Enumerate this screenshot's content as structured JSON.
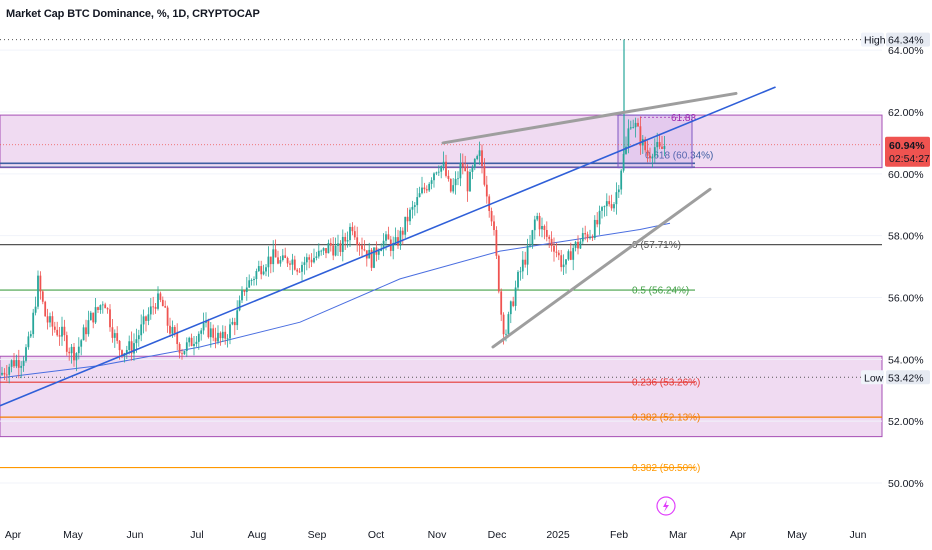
{
  "title": "Market Cap BTC Dominance, %, 1D, CRYPTOCAP",
  "chart_data": {
    "type": "candlestick",
    "y_axis": {
      "ticks": [
        "50.00%",
        "52.00%",
        "54.00%",
        "56.00%",
        "58.00%",
        "60.00%",
        "62.00%",
        "64.00%"
      ],
      "ylim": [
        49.0,
        65.0
      ],
      "side": "right"
    },
    "x_axis": {
      "ticks": [
        "Apr",
        "May",
        "Jun",
        "Jul",
        "Aug",
        "Sep",
        "Oct",
        "Nov",
        "Dec",
        "2025",
        "Feb",
        "Mar",
        "Apr",
        "May",
        "Jun"
      ]
    },
    "close_path": [
      [
        0,
        53.5
      ],
      [
        12,
        53.9
      ],
      [
        22,
        54.0
      ],
      [
        30,
        54.6
      ],
      [
        38,
        56.5
      ],
      [
        46,
        55.3
      ],
      [
        54,
        55.0
      ],
      [
        62,
        54.8
      ],
      [
        70,
        54.3
      ],
      [
        76,
        54.2
      ],
      [
        82,
        54.7
      ],
      [
        90,
        55.3
      ],
      [
        98,
        55.6
      ],
      [
        104,
        56.0
      ],
      [
        112,
        55.0
      ],
      [
        118,
        54.4
      ],
      [
        124,
        54.3
      ],
      [
        132,
        54.4
      ],
      [
        140,
        54.9
      ],
      [
        148,
        55.4
      ],
      [
        156,
        55.9
      ],
      [
        162,
        55.8
      ],
      [
        168,
        55.1
      ],
      [
        176,
        54.6
      ],
      [
        182,
        54.3
      ],
      [
        190,
        54.5
      ],
      [
        198,
        54.9
      ],
      [
        206,
        55.0
      ],
      [
        214,
        54.8
      ],
      [
        222,
        54.6
      ],
      [
        230,
        55.0
      ],
      [
        238,
        55.5
      ],
      [
        244,
        56.3
      ],
      [
        252,
        56.6
      ],
      [
        258,
        56.9
      ],
      [
        266,
        57.2
      ],
      [
        274,
        57.3
      ],
      [
        282,
        57.1
      ],
      [
        290,
        57.3
      ],
      [
        298,
        57.0
      ],
      [
        306,
        57.2
      ],
      [
        314,
        57.3
      ],
      [
        322,
        57.4
      ],
      [
        330,
        57.7
      ],
      [
        338,
        57.5
      ],
      [
        346,
        57.9
      ],
      [
        352,
        58.4
      ],
      [
        358,
        57.9
      ],
      [
        364,
        57.6
      ],
      [
        372,
        57.2
      ],
      [
        380,
        57.8
      ],
      [
        388,
        57.8
      ],
      [
        394,
        57.6
      ],
      [
        402,
        58.1
      ],
      [
        408,
        58.6
      ],
      [
        414,
        58.9
      ],
      [
        420,
        59.3
      ],
      [
        426,
        59.6
      ],
      [
        432,
        60.0
      ],
      [
        438,
        60.3
      ],
      [
        444,
        60.2
      ],
      [
        450,
        59.4
      ],
      [
        456,
        59.7
      ],
      [
        462,
        60.4
      ],
      [
        468,
        59.6
      ],
      [
        474,
        60.2
      ],
      [
        480,
        60.6
      ],
      [
        486,
        59.6
      ],
      [
        492,
        58.6
      ],
      [
        498,
        56.7
      ],
      [
        502,
        55.2
      ],
      [
        506,
        54.9
      ],
      [
        512,
        55.8
      ],
      [
        518,
        56.6
      ],
      [
        524,
        57.2
      ],
      [
        530,
        57.6
      ],
      [
        536,
        58.7
      ],
      [
        542,
        58.2
      ],
      [
        548,
        57.9
      ],
      [
        554,
        57.7
      ],
      [
        560,
        57.2
      ],
      [
        566,
        57.0
      ],
      [
        572,
        57.6
      ],
      [
        578,
        57.7
      ],
      [
        584,
        58.0
      ],
      [
        590,
        58.1
      ],
      [
        596,
        58.3
      ],
      [
        602,
        58.7
      ],
      [
        608,
        59.1
      ],
      [
        614,
        59.1
      ],
      [
        618,
        59.6
      ],
      [
        622,
        60.4
      ],
      [
        626,
        60.8
      ],
      [
        630,
        61.8
      ],
      [
        636,
        61.5
      ],
      [
        642,
        61.0
      ],
      [
        648,
        60.6
      ],
      [
        654,
        60.9
      ],
      [
        660,
        60.7
      ],
      [
        664,
        60.9
      ],
      [
        666,
        61.0
      ]
    ],
    "series": [
      {
        "name": "MA",
        "color": "#4a6ee0",
        "x": [
          0,
          100,
          200,
          300,
          400,
          500,
          560,
          600,
          640,
          670
        ],
        "y": [
          53.4,
          53.8,
          54.4,
          55.2,
          56.6,
          57.5,
          57.8,
          58.0,
          58.2,
          58.4
        ]
      }
    ],
    "levels": [
      {
        "label": "0.618 (60.34%)",
        "value": 60.34,
        "color": "#3f5fa3"
      },
      {
        "label": "0 (57.71%)",
        "value": 57.71,
        "color": "#555555"
      },
      {
        "label": "0.5 (56.24%)",
        "value": 56.24,
        "color": "#43a047"
      },
      {
        "label": "0.236 (53.26%)",
        "value": 53.26,
        "color": "#e53935"
      },
      {
        "label": "0.382 (52.13%)",
        "value": 52.13,
        "color": "#f57c00"
      },
      {
        "label": "0.382 (50.50%)",
        "value": 50.5,
        "color": "#ff9800"
      }
    ],
    "fib_small": {
      "label": "61.83",
      "value": 61.83
    },
    "zones": [
      {
        "from": 60.2,
        "to": 61.9,
        "color": "#cf8fd6"
      },
      {
        "from": 51.5,
        "to": 54.1,
        "color": "#cf8fd6"
      }
    ],
    "trendlines": [
      {
        "color": "#2f5fd8",
        "points": [
          [
            0,
            52.5
          ],
          [
            775,
            62.8
          ]
        ]
      },
      {
        "color": "#9e9e9e",
        "points": [
          [
            443,
            61.0
          ],
          [
            736,
            62.6
          ]
        ]
      },
      {
        "color": "#9e9e9e",
        "points": [
          [
            493,
            54.4
          ],
          [
            710,
            59.5
          ]
        ]
      }
    ],
    "markers": [
      {
        "label": "High",
        "value": 64.34,
        "text": "64.34%"
      },
      {
        "label": "Low",
        "value": 53.42,
        "text": "53.42%"
      }
    ],
    "price_tag": {
      "value": 60.94,
      "text": "60.94%",
      "countdown": "02:54:27",
      "color": "#ef5350"
    }
  }
}
